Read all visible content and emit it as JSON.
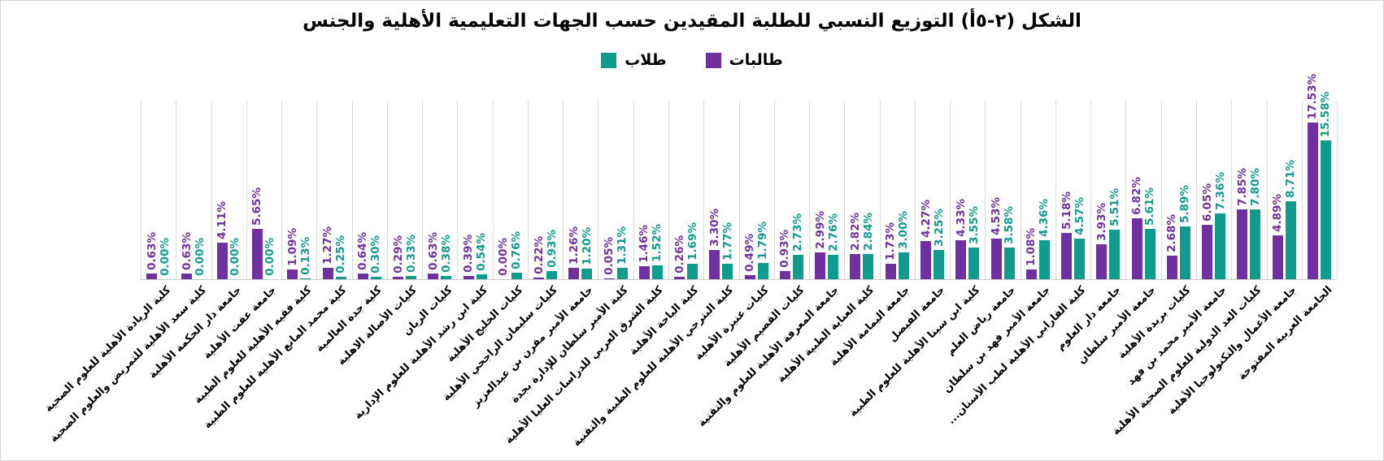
{
  "chart_data": {
    "type": "bar",
    "title": "الشكل (٢-٥أ) التوزيع النسبي للطلبة المقيدين حسب الجهات التعليمية الأهلية والجنس",
    "xlabel": "",
    "ylabel": "",
    "ylim": [
      0,
      20
    ],
    "grid": "vertical-category-separators",
    "legend_position": "top-center",
    "value_label_format": "0.00%",
    "value_label_orientation": "rotated-90",
    "category_label_orientation": "rotated-45",
    "pair_order_left_to_right": [
      "طالبات",
      "طلاب"
    ],
    "categories": [
      "كلية الريادة الأهلية للعلوم الصحية",
      "كلية سعد الأهلية للتمريض والعلوم الصحية",
      "جامعة دار الحكمة الأهلية",
      "جامعة عفت الأهلية",
      "كلية فقيه الأهلية للعلوم الطبية",
      "كلية محمد المانع الأهلية للعلوم الطبية",
      "كلية جدة العالمية",
      "كليات الأصالة الاهلية",
      "كليات الريان",
      "كلية ابن رشد الأهلية للعلوم الإدارية",
      "كليات الخليج الأهلية",
      "كليات سليمان الراجحي الأهلية",
      "جامعة الأمير مقرن بن عبدالعزيز",
      "كلية الأمير سلطان للإدارة بجدة",
      "كلية الشرق العربي للدراسات العليا الأهلية",
      "كلية الباحة الأهلية",
      "كلية البترجي الأهلية للعلوم الطبية والتقنية",
      "كليات عنيزة الأهلية",
      "كليات القصيم الأهلية",
      "جامعة المعرفة الأهلية للعلوم والتقنية",
      "كلية العناية الطبية الأهلية",
      "جامعة اليمامة الأهلية",
      "جامعة الفيصل",
      "كلية ابن سينا الأهلية للعلوم الطبية",
      "جامعة رياض العلم",
      "جامعة الأمير فهد بن سلطان",
      "كلية الفارابي الأهلية لطب الأسنان...",
      "جامعة دار العلوم",
      "جامعة الأمير سلطان",
      "كليات بريدة الأهلية",
      "جامعة الأمير محمد بن فهد",
      "كليات الغد الدولية للعلوم الصحية الأهلية",
      "جامعة الأعمال والتكنولوجيا الأهلية",
      "الجامعة العربية المفتوحة"
    ],
    "series": [
      {
        "name": "طالبات",
        "color": "#7030A0",
        "values": [
          0.63,
          0.63,
          4.11,
          5.65,
          1.09,
          1.27,
          0.64,
          0.29,
          0.63,
          0.39,
          0.0,
          0.22,
          1.26,
          0.05,
          1.46,
          0.26,
          3.3,
          0.49,
          0.93,
          2.99,
          2.82,
          1.73,
          4.27,
          4.33,
          4.53,
          1.08,
          5.18,
          3.93,
          6.82,
          2.68,
          6.05,
          7.85,
          4.89,
          17.53
        ]
      },
      {
        "name": "طلاب",
        "color": "#0F9B8E",
        "values": [
          0.0,
          0.0,
          0.0,
          0.0,
          0.13,
          0.25,
          0.3,
          0.33,
          0.38,
          0.54,
          0.76,
          0.93,
          1.2,
          1.31,
          1.52,
          1.69,
          1.77,
          1.79,
          2.73,
          2.76,
          2.84,
          3.0,
          3.25,
          3.55,
          3.58,
          4.36,
          4.57,
          5.51,
          5.61,
          5.89,
          7.36,
          7.8,
          8.71,
          15.58
        ]
      }
    ]
  }
}
